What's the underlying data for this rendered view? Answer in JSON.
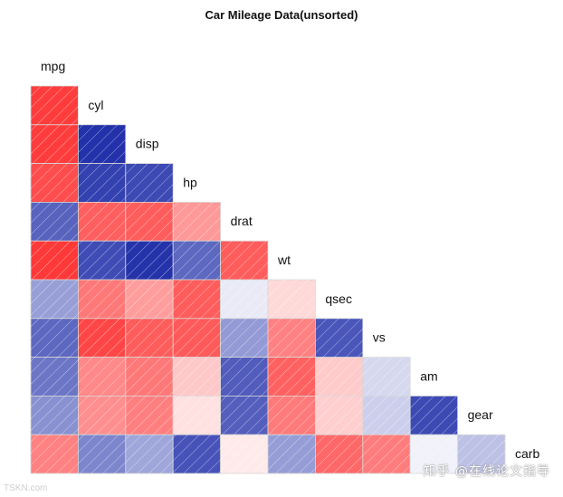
{
  "chart_data": {
    "type": "heatmap",
    "title": "Car Mileage Data(unsorted)",
    "variables": [
      "mpg",
      "cyl",
      "disp",
      "hp",
      "drat",
      "wt",
      "qsec",
      "vs",
      "am",
      "gear",
      "carb"
    ],
    "correlations": [
      [
        -0.85
      ],
      [
        -0.85,
        0.9
      ],
      [
        -0.78,
        0.83,
        0.79
      ],
      [
        0.68,
        -0.7,
        -0.71,
        -0.45
      ],
      [
        -0.87,
        0.78,
        0.89,
        0.66,
        -0.71
      ],
      [
        0.42,
        -0.59,
        -0.43,
        -0.71,
        0.09,
        -0.17
      ],
      [
        0.66,
        -0.81,
        -0.71,
        -0.72,
        0.44,
        -0.55,
        0.74
      ],
      [
        0.6,
        -0.52,
        -0.59,
        -0.24,
        0.71,
        -0.69,
        -0.23,
        0.17
      ],
      [
        0.48,
        -0.49,
        -0.56,
        -0.13,
        0.7,
        -0.58,
        -0.21,
        0.21,
        0.79
      ],
      [
        -0.55,
        0.53,
        0.39,
        0.75,
        -0.09,
        0.43,
        -0.66,
        -0.57,
        0.06,
        0.27
      ]
    ],
    "color_scale": {
      "negative": "#ff1a1a",
      "positive": "#0a1aa0",
      "zero": "#ffffff"
    },
    "hatch": "diagonal"
  },
  "watermark": "知乎 @在线论文指导",
  "corner_watermark": "TSKN.com"
}
